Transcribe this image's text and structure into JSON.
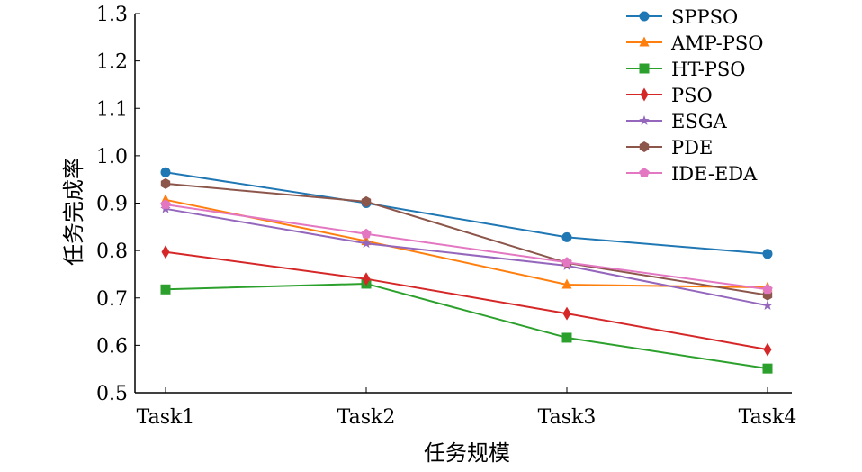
{
  "chart_data": {
    "type": "line",
    "title": "",
    "xlabel": "任务规模",
    "ylabel": "任务完成率",
    "categories": [
      "Task1",
      "Task2",
      "Task3",
      "Task4"
    ],
    "ylim": [
      0.5,
      1.3
    ],
    "yticks": [
      "0.5",
      "0.6",
      "0.7",
      "0.8",
      "0.9",
      "1.0",
      "1.1",
      "1.2",
      "1.3"
    ],
    "grid": false,
    "legend_position": "top-right",
    "series": [
      {
        "name": "SPPSO",
        "color": "#1f77b4",
        "marker": "circle",
        "values": [
          0.965,
          0.9,
          0.828,
          0.793
        ]
      },
      {
        "name": "AMP-PSO",
        "color": "#ff7f0e",
        "marker": "triangle",
        "values": [
          0.907,
          0.82,
          0.728,
          0.722
        ]
      },
      {
        "name": "HT-PSO",
        "color": "#2ca02c",
        "marker": "square",
        "values": [
          0.718,
          0.73,
          0.616,
          0.551
        ]
      },
      {
        "name": "PSO",
        "color": "#d62728",
        "marker": "diamond",
        "values": [
          0.797,
          0.74,
          0.667,
          0.591
        ]
      },
      {
        "name": "ESGA",
        "color": "#9467bd",
        "marker": "star",
        "values": [
          0.888,
          0.815,
          0.768,
          0.684
        ]
      },
      {
        "name": "PDE",
        "color": "#8c564b",
        "marker": "hexagon",
        "values": [
          0.941,
          0.903,
          0.774,
          0.706
        ]
      },
      {
        "name": "IDE-EDA",
        "color": "#e377c2",
        "marker": "pentagon",
        "values": [
          0.897,
          0.835,
          0.775,
          0.718
        ]
      }
    ]
  }
}
